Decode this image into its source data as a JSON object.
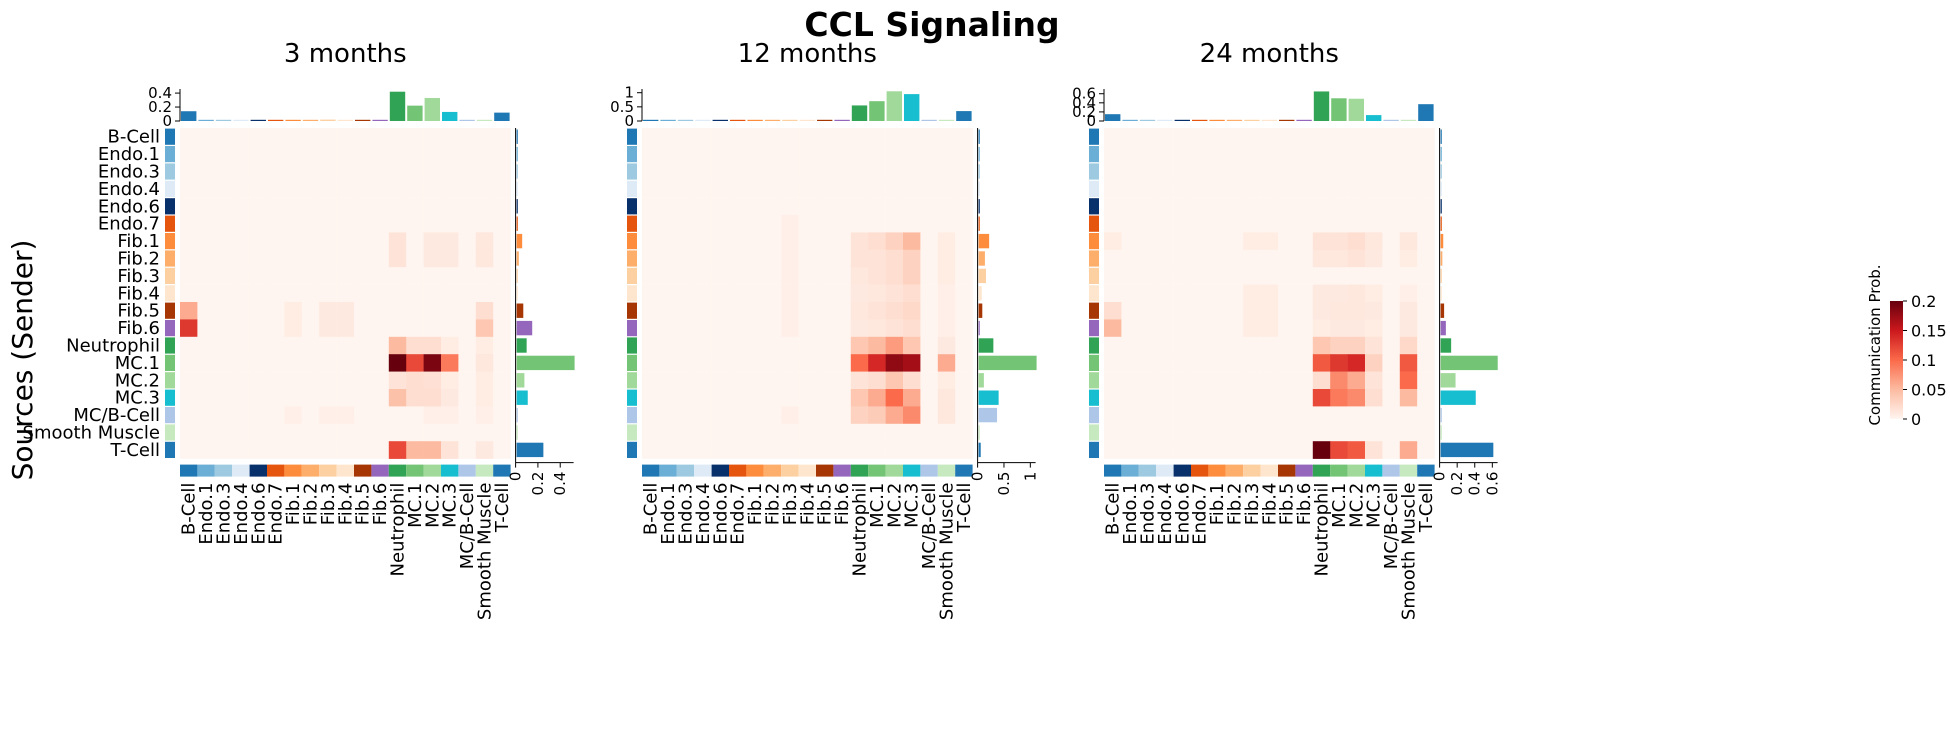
{
  "figure_title": "CCL Signaling",
  "y_axis_label": "Sources (Sender)",
  "colorbar": {
    "label": "Communication Prob.",
    "ticks": [
      "0",
      "0.05",
      "0.1",
      "0.15",
      "0.2"
    ],
    "min": 0,
    "max": 0.2,
    "colormap": "Reds"
  },
  "cell_types": [
    "B-Cell",
    "Endo.1",
    "Endo.3",
    "Endo.4",
    "Endo.6",
    "Endo.7",
    "Fib.1",
    "Fib.2",
    "Fib.3",
    "Fib.4",
    "Fib.5",
    "Fib.6",
    "Neutrophil",
    "MC.1",
    "MC.2",
    "MC.3",
    "MC/B-Cell",
    "Smooth Muscle",
    "T-Cell"
  ],
  "cell_colors": [
    "#1f77b4",
    "#6baed6",
    "#9ecae1",
    "#deebf7",
    "#08306b",
    "#e6550d",
    "#fd8d3c",
    "#fdae6b",
    "#fdd0a2",
    "#fee6ce",
    "#a63603",
    "#9467bd",
    "#31a354",
    "#74c476",
    "#a1d99b",
    "#17becf",
    "#aec7e8",
    "#c7e9c0",
    "#1f77b4"
  ],
  "chart_data": [
    {
      "type": "heatmap",
      "title": "3 months",
      "top_ticks": [
        "0",
        "0.2",
        "0.4"
      ],
      "top_max": 0.43,
      "right_ticks": [
        "0",
        "0.2",
        "0.4"
      ],
      "right_max": 0.52,
      "top_bars": [
        0.14,
        0.005,
        0.005,
        0.005,
        0.005,
        0.01,
        0.015,
        0.005,
        0.02,
        0.005,
        0.005,
        0.01,
        0.42,
        0.22,
        0.33,
        0.13,
        0.005,
        0.005,
        0.12
      ],
      "right_bars": [
        0.003,
        0.001,
        0.001,
        0.001,
        0.004,
        0.006,
        0.05,
        0.02,
        0.01,
        0.003,
        0.06,
        0.14,
        0.09,
        0.52,
        0.07,
        0.1,
        0.01,
        0.003,
        0.24
      ],
      "matrix": [
        [
          0,
          0,
          0,
          0,
          0,
          0,
          0,
          0,
          0,
          0,
          0,
          0,
          0,
          0,
          0,
          0,
          0,
          0,
          0
        ],
        [
          0,
          0,
          0,
          0,
          0,
          0,
          0,
          0,
          0,
          0,
          0,
          0,
          0,
          0,
          0,
          0,
          0,
          0,
          0
        ],
        [
          0,
          0,
          0,
          0,
          0,
          0,
          0,
          0,
          0,
          0,
          0,
          0,
          0,
          0,
          0,
          0,
          0,
          0,
          0
        ],
        [
          0,
          0,
          0,
          0,
          0,
          0,
          0,
          0,
          0,
          0,
          0,
          0,
          0,
          0,
          0,
          0,
          0,
          0,
          0
        ],
        [
          0,
          0,
          0,
          0,
          0,
          0,
          0,
          0,
          0,
          0,
          0,
          0,
          0,
          0,
          0,
          0,
          0,
          0,
          0
        ],
        [
          0,
          0,
          0,
          0,
          0,
          0,
          0,
          0,
          0,
          0,
          0,
          0,
          0,
          0,
          0,
          0,
          0,
          0,
          0
        ],
        [
          0,
          0,
          0,
          0,
          0,
          0,
          0,
          0,
          0,
          0,
          0,
          0,
          0.015,
          0,
          0.01,
          0.01,
          0,
          0.012,
          0
        ],
        [
          0,
          0,
          0,
          0,
          0,
          0,
          0,
          0,
          0,
          0,
          0,
          0,
          0.015,
          0,
          0.01,
          0.01,
          0,
          0.012,
          0
        ],
        [
          0,
          0,
          0,
          0,
          0,
          0,
          0,
          0,
          0,
          0,
          0,
          0,
          0,
          0,
          0,
          0,
          0,
          0,
          0
        ],
        [
          0,
          0,
          0,
          0,
          0,
          0,
          0,
          0,
          0,
          0,
          0,
          0,
          0,
          0,
          0,
          0,
          0,
          0,
          0
        ],
        [
          0.06,
          0,
          0,
          0,
          0,
          0,
          0.008,
          0,
          0.01,
          0.01,
          0,
          0,
          0,
          0,
          0,
          0,
          0,
          0.02,
          0
        ],
        [
          0.13,
          0,
          0,
          0,
          0,
          0,
          0.008,
          0,
          0.01,
          0.01,
          0,
          0,
          0,
          0,
          0,
          0,
          0,
          0.04,
          0
        ],
        [
          0,
          0,
          0,
          0,
          0,
          0,
          0,
          0,
          0,
          0,
          0,
          0,
          0.05,
          0.02,
          0.02,
          0.008,
          0,
          0.008,
          0
        ],
        [
          0,
          0,
          0,
          0,
          0,
          0,
          0,
          0,
          0,
          0,
          0,
          0,
          0.2,
          0.12,
          0.19,
          0.09,
          0,
          0.012,
          0
        ],
        [
          0,
          0,
          0,
          0,
          0,
          0,
          0,
          0,
          0,
          0,
          0,
          0,
          0.015,
          0.02,
          0.018,
          0.008,
          0,
          0.008,
          0
        ],
        [
          0,
          0,
          0,
          0,
          0,
          0,
          0,
          0,
          0,
          0,
          0,
          0,
          0.045,
          0.02,
          0.02,
          0.01,
          0,
          0.008,
          0
        ],
        [
          0,
          0,
          0,
          0,
          0,
          0,
          0.005,
          0,
          0.005,
          0.005,
          0,
          0,
          0,
          0,
          0.005,
          0.005,
          0,
          0.005,
          0
        ],
        [
          0,
          0,
          0,
          0,
          0,
          0,
          0,
          0,
          0,
          0,
          0,
          0,
          0,
          0,
          0,
          0,
          0,
          0,
          0
        ],
        [
          0,
          0,
          0,
          0,
          0,
          0,
          0,
          0,
          0,
          0,
          0,
          0,
          0.12,
          0.05,
          0.05,
          0.015,
          0,
          0.01,
          0
        ]
      ]
    },
    {
      "type": "heatmap",
      "title": "12 months",
      "top_ticks": [
        "0",
        "0.5",
        "1"
      ],
      "top_max": 1.06,
      "right_ticks": [
        "0",
        "0.5",
        "1"
      ],
      "right_max": 1.1,
      "top_bars": [
        0.005,
        0.005,
        0.005,
        0.005,
        0.005,
        0.005,
        0.005,
        0.005,
        0.005,
        0.005,
        0.005,
        0.005,
        0.55,
        0.7,
        1.05,
        0.95,
        0.005,
        0.005,
        0.35
      ],
      "right_bars": [
        0.005,
        0.003,
        0.003,
        0.003,
        0.008,
        0.01,
        0.2,
        0.12,
        0.14,
        0.06,
        0.07,
        0.02,
        0.28,
        1.1,
        0.1,
        0.38,
        0.35,
        0.005,
        0.04
      ],
      "matrix": [
        [
          0,
          0,
          0,
          0,
          0,
          0,
          0,
          0,
          0,
          0,
          0,
          0,
          0,
          0,
          0,
          0,
          0,
          0,
          0
        ],
        [
          0,
          0,
          0,
          0,
          0,
          0,
          0,
          0,
          0,
          0,
          0,
          0,
          0,
          0,
          0,
          0,
          0,
          0,
          0
        ],
        [
          0,
          0,
          0,
          0,
          0,
          0,
          0,
          0,
          0,
          0,
          0,
          0,
          0,
          0,
          0,
          0,
          0,
          0,
          0
        ],
        [
          0,
          0,
          0,
          0,
          0,
          0,
          0,
          0,
          0,
          0,
          0,
          0,
          0,
          0,
          0,
          0,
          0,
          0,
          0
        ],
        [
          0,
          0,
          0,
          0,
          0,
          0,
          0,
          0,
          0,
          0,
          0,
          0,
          0,
          0,
          0,
          0,
          0,
          0,
          0
        ],
        [
          0,
          0,
          0,
          0,
          0,
          0,
          0,
          0,
          0.005,
          0,
          0,
          0,
          0,
          0,
          0,
          0,
          0,
          0,
          0
        ],
        [
          0,
          0,
          0,
          0,
          0,
          0,
          0,
          0,
          0.005,
          0,
          0,
          0,
          0.015,
          0.02,
          0.03,
          0.05,
          0,
          0.008,
          0
        ],
        [
          0,
          0,
          0,
          0,
          0,
          0,
          0,
          0,
          0.005,
          0,
          0,
          0,
          0.015,
          0.015,
          0.02,
          0.03,
          0,
          0.008,
          0
        ],
        [
          0,
          0,
          0,
          0,
          0,
          0,
          0,
          0,
          0.005,
          0,
          0,
          0,
          0.012,
          0.015,
          0.02,
          0.03,
          0,
          0.008,
          0
        ],
        [
          0,
          0,
          0,
          0,
          0,
          0,
          0,
          0,
          0.005,
          0,
          0,
          0,
          0.01,
          0.012,
          0.015,
          0.02,
          0,
          0.005,
          0
        ],
        [
          0,
          0,
          0,
          0,
          0,
          0,
          0,
          0,
          0.005,
          0,
          0,
          0,
          0.012,
          0.015,
          0.02,
          0.025,
          0,
          0.005,
          0
        ],
        [
          0,
          0,
          0,
          0,
          0,
          0,
          0,
          0,
          0.005,
          0,
          0,
          0,
          0.01,
          0.012,
          0.015,
          0.02,
          0,
          0.005,
          0
        ],
        [
          0,
          0,
          0,
          0,
          0,
          0,
          0,
          0,
          0,
          0,
          0,
          0,
          0.04,
          0.05,
          0.07,
          0.04,
          0,
          0.01,
          0
        ],
        [
          0,
          0,
          0,
          0,
          0,
          0,
          0,
          0,
          0,
          0,
          0,
          0,
          0.1,
          0.14,
          0.18,
          0.17,
          0,
          0.06,
          0
        ],
        [
          0,
          0,
          0,
          0,
          0,
          0,
          0,
          0,
          0,
          0,
          0,
          0,
          0.015,
          0.02,
          0.04,
          0.02,
          0,
          0.008,
          0
        ],
        [
          0,
          0,
          0,
          0,
          0,
          0,
          0,
          0,
          0,
          0,
          0,
          0,
          0.04,
          0.06,
          0.1,
          0.06,
          0,
          0.012,
          0
        ],
        [
          0,
          0,
          0,
          0,
          0,
          0,
          0,
          0,
          0.005,
          0,
          0,
          0,
          0.03,
          0.035,
          0.06,
          0.08,
          0,
          0.012,
          0
        ],
        [
          0,
          0,
          0,
          0,
          0,
          0,
          0,
          0,
          0,
          0,
          0,
          0,
          0,
          0,
          0,
          0,
          0,
          0,
          0
        ],
        [
          0,
          0,
          0,
          0,
          0,
          0,
          0,
          0,
          0,
          0,
          0,
          0,
          0,
          0,
          0,
          0,
          0,
          0,
          0
        ]
      ]
    },
    {
      "type": "heatmap",
      "title": "24 months",
      "top_ticks": [
        "0",
        "0.2",
        "0.4",
        "0.6"
      ],
      "top_max": 0.66,
      "right_ticks": [
        "0",
        "0.2",
        "0.4",
        "0.6"
      ],
      "right_max": 0.66,
      "top_bars": [
        0.15,
        0.005,
        0.005,
        0.005,
        0.005,
        0.005,
        0.005,
        0.005,
        0.01,
        0.005,
        0.005,
        0.005,
        0.65,
        0.5,
        0.49,
        0.13,
        0.005,
        0.005,
        0.37
      ],
      "right_bars": [
        0.003,
        0.001,
        0.001,
        0.001,
        0.003,
        0.005,
        0.03,
        0.02,
        0.01,
        0.005,
        0.04,
        0.06,
        0.12,
        0.65,
        0.17,
        0.4,
        0.003,
        0.003,
        0.6
      ],
      "matrix": [
        [
          0,
          0,
          0,
          0,
          0,
          0,
          0,
          0,
          0,
          0,
          0,
          0,
          0,
          0,
          0,
          0,
          0,
          0,
          0
        ],
        [
          0,
          0,
          0,
          0,
          0,
          0,
          0,
          0,
          0,
          0,
          0,
          0,
          0,
          0,
          0,
          0,
          0,
          0,
          0
        ],
        [
          0,
          0,
          0,
          0,
          0,
          0,
          0,
          0,
          0,
          0,
          0,
          0,
          0,
          0,
          0,
          0,
          0,
          0,
          0
        ],
        [
          0,
          0,
          0,
          0,
          0,
          0,
          0,
          0,
          0,
          0,
          0,
          0,
          0,
          0,
          0,
          0,
          0,
          0,
          0
        ],
        [
          0,
          0,
          0,
          0,
          0,
          0,
          0,
          0,
          0,
          0,
          0,
          0,
          0,
          0,
          0,
          0,
          0,
          0,
          0
        ],
        [
          0,
          0,
          0,
          0,
          0,
          0,
          0,
          0,
          0,
          0,
          0,
          0,
          0,
          0,
          0,
          0,
          0,
          0,
          0
        ],
        [
          0.008,
          0,
          0,
          0,
          0,
          0,
          0,
          0,
          0.008,
          0.008,
          0,
          0,
          0.015,
          0.015,
          0.02,
          0.012,
          0,
          0.012,
          0
        ],
        [
          0,
          0,
          0,
          0,
          0,
          0,
          0,
          0,
          0,
          0,
          0,
          0,
          0.012,
          0.012,
          0.015,
          0.01,
          0,
          0.008,
          0
        ],
        [
          0,
          0,
          0,
          0,
          0,
          0,
          0,
          0,
          0,
          0,
          0,
          0,
          0,
          0,
          0,
          0,
          0,
          0,
          0
        ],
        [
          0,
          0,
          0,
          0,
          0,
          0,
          0,
          0,
          0.008,
          0.008,
          0,
          0,
          0.01,
          0.01,
          0.012,
          0.008,
          0,
          0.005,
          0
        ],
        [
          0.02,
          0,
          0,
          0,
          0,
          0,
          0,
          0,
          0.008,
          0.008,
          0,
          0,
          0.01,
          0.012,
          0.012,
          0.01,
          0,
          0.01,
          0
        ],
        [
          0.05,
          0,
          0,
          0,
          0,
          0,
          0,
          0,
          0.008,
          0.008,
          0,
          0,
          0.008,
          0.01,
          0.01,
          0.008,
          0,
          0.01,
          0
        ],
        [
          0,
          0,
          0,
          0,
          0,
          0,
          0,
          0,
          0,
          0,
          0,
          0,
          0.04,
          0.03,
          0.03,
          0.015,
          0,
          0.025,
          0
        ],
        [
          0,
          0,
          0,
          0,
          0,
          0,
          0,
          0,
          0,
          0,
          0,
          0,
          0.11,
          0.13,
          0.14,
          0.03,
          0,
          0.11,
          0
        ],
        [
          0,
          0,
          0,
          0,
          0,
          0,
          0,
          0,
          0,
          0,
          0,
          0,
          0.02,
          0.08,
          0.06,
          0.015,
          0,
          0.1,
          0
        ],
        [
          0,
          0,
          0,
          0,
          0,
          0,
          0,
          0,
          0,
          0,
          0,
          0,
          0.12,
          0.09,
          0.08,
          0.02,
          0,
          0.05,
          0
        ],
        [
          0,
          0,
          0,
          0,
          0,
          0,
          0,
          0,
          0,
          0,
          0,
          0,
          0,
          0,
          0,
          0,
          0,
          0,
          0
        ],
        [
          0,
          0,
          0,
          0,
          0,
          0,
          0,
          0,
          0,
          0,
          0,
          0,
          0,
          0,
          0,
          0,
          0,
          0,
          0
        ],
        [
          0,
          0,
          0,
          0,
          0,
          0,
          0,
          0,
          0,
          0,
          0,
          0,
          0.2,
          0.12,
          0.11,
          0.015,
          0,
          0.06,
          0
        ]
      ]
    }
  ]
}
